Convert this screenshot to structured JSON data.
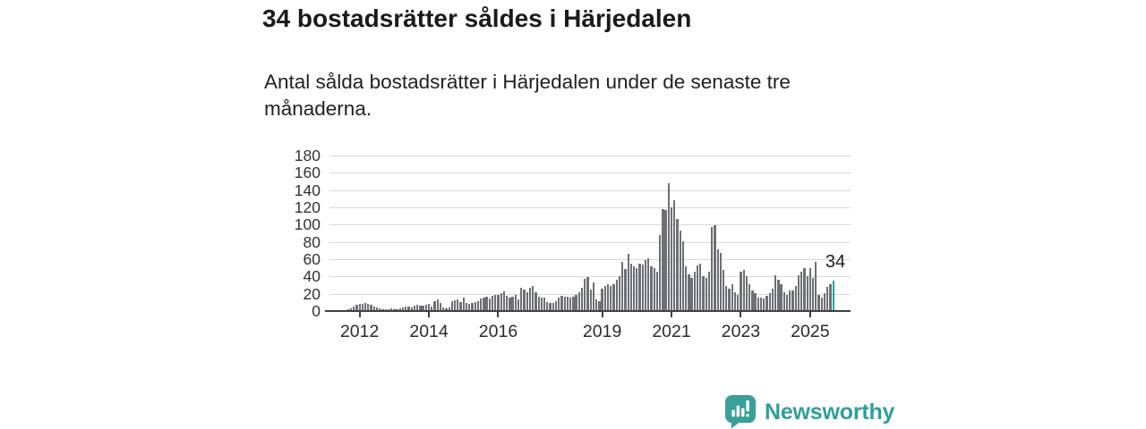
{
  "header": {
    "title": "34 bostadsrätter såldes i Härjedalen",
    "subtitle": "Antal sålda bostadsrätter i Härjedalen under de senaste tre månaderna."
  },
  "chart_data": {
    "type": "bar",
    "title": "34 bostadsrätter såldes i Härjedalen",
    "subtitle": "Antal sålda bostadsrätter i Härjedalen under de senaste tre månaderna.",
    "x_start_month": "2011-07",
    "x_end_month": "2025-09",
    "x_tick_years": [
      2012,
      2014,
      2016,
      2019,
      2021,
      2023,
      2025
    ],
    "ylim": [
      0,
      180
    ],
    "y_tick_step": 20,
    "y_ticks": [
      0,
      20,
      40,
      60,
      80,
      100,
      120,
      140,
      160,
      180
    ],
    "grid": true,
    "values": [
      0,
      0,
      1,
      2,
      4,
      6,
      7,
      7,
      8,
      7,
      6,
      4,
      3,
      2,
      1,
      1,
      1,
      2,
      1,
      1,
      2,
      3,
      4,
      4,
      3,
      5,
      6,
      5,
      5,
      6,
      7,
      4,
      10,
      12,
      8,
      3,
      2,
      3,
      10,
      11,
      12,
      9,
      14,
      8,
      7,
      8,
      9,
      10,
      13,
      15,
      16,
      13,
      17,
      18,
      18,
      20,
      22,
      17,
      14,
      16,
      18,
      12,
      26,
      24,
      21,
      26,
      28,
      21,
      16,
      14,
      14,
      9,
      8,
      8,
      10,
      14,
      17,
      16,
      16,
      14,
      16,
      18,
      21,
      26,
      36,
      38,
      24,
      32,
      12,
      10,
      25,
      28,
      30,
      28,
      30,
      35,
      39,
      56,
      48,
      65,
      54,
      51,
      49,
      54,
      53,
      58,
      60,
      51,
      49,
      44,
      87,
      117,
      116,
      147,
      119,
      127,
      106,
      92,
      80,
      51,
      41,
      37,
      44,
      52,
      54,
      39,
      37,
      44,
      96,
      98,
      70,
      66,
      47,
      28,
      25,
      30,
      21,
      18,
      44,
      47,
      39,
      30,
      23,
      20,
      15,
      15,
      13,
      17,
      20,
      25,
      40,
      35,
      30,
      21,
      18,
      23,
      23,
      28,
      40,
      45,
      49,
      39,
      49,
      37,
      56,
      18,
      15,
      20,
      27,
      30,
      34
    ],
    "highlight_last": true,
    "highlight_label": "34",
    "highlight_value": 34,
    "colors": {
      "bar": "#6e7075",
      "highlight": "#14a79e",
      "grid": "#d8d8d8",
      "axis": "#404040"
    }
  },
  "footer": {
    "brand": "Newsworthy",
    "brand_color": "#2f9f99",
    "logo_icon": "newsworthy-chart-bubble-icon"
  }
}
